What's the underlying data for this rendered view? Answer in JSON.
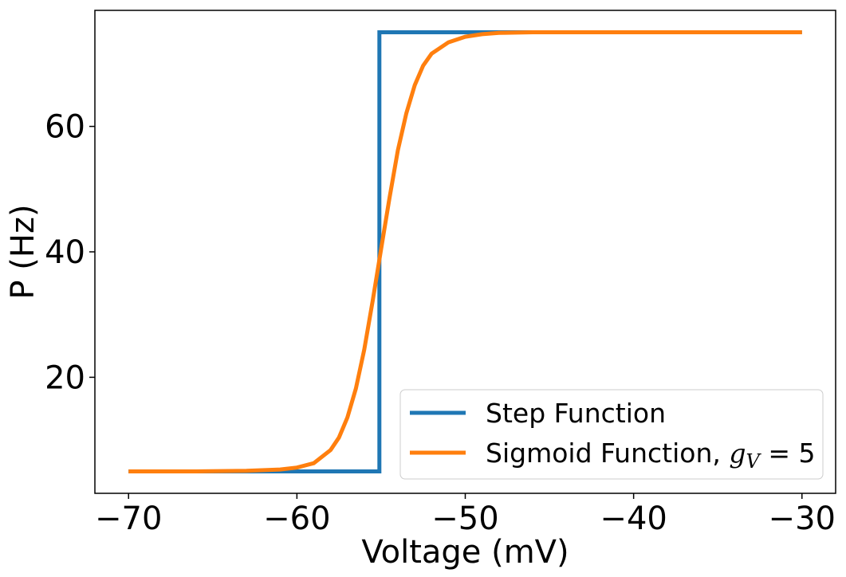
{
  "chart_data": {
    "type": "line",
    "xlabel": "Voltage (mV)",
    "ylabel": "P (Hz)",
    "xlim": [
      -72,
      -28
    ],
    "ylim": [
      1.5,
      78.5
    ],
    "xticks": [
      -70,
      -60,
      -50,
      -40,
      -30
    ],
    "xtick_labels": [
      "−70",
      "−60",
      "−50",
      "−40",
      "−30"
    ],
    "yticks": [
      20,
      40,
      60
    ],
    "ytick_labels": [
      "20",
      "40",
      "60"
    ],
    "grid": false,
    "legend_position": "lower-right",
    "series": [
      {
        "name": "Step Function",
        "color": "#1f77b4",
        "x": [
          -70,
          -55.1,
          -55.1,
          -30
        ],
        "y": [
          5,
          5,
          75,
          75
        ]
      },
      {
        "name": "Sigmoid Function, g_V = 5",
        "legend_prefix": "Sigmoid Function, ",
        "legend_math": "g",
        "legend_math_sub": "V",
        "legend_math_rest": " = 5",
        "color": "#ff7f0e",
        "x": [
          -70,
          -66,
          -63,
          -61,
          -60,
          -59,
          -58,
          -57.5,
          -57,
          -56.5,
          -56,
          -55.5,
          -55,
          -54.5,
          -54,
          -53.5,
          -53,
          -52.5,
          -52,
          -51,
          -50,
          -49,
          -48,
          -46,
          -42,
          -36,
          -30
        ],
        "y": [
          5,
          5,
          5.1,
          5.3,
          5.6,
          6.3,
          8.4,
          10.4,
          13.6,
          18.2,
          24.4,
          32.2,
          40.4,
          48.6,
          56.2,
          62.1,
          66.6,
          69.7,
          71.6,
          73.4,
          74.3,
          74.7,
          74.9,
          75,
          75,
          75,
          75
        ]
      }
    ]
  }
}
